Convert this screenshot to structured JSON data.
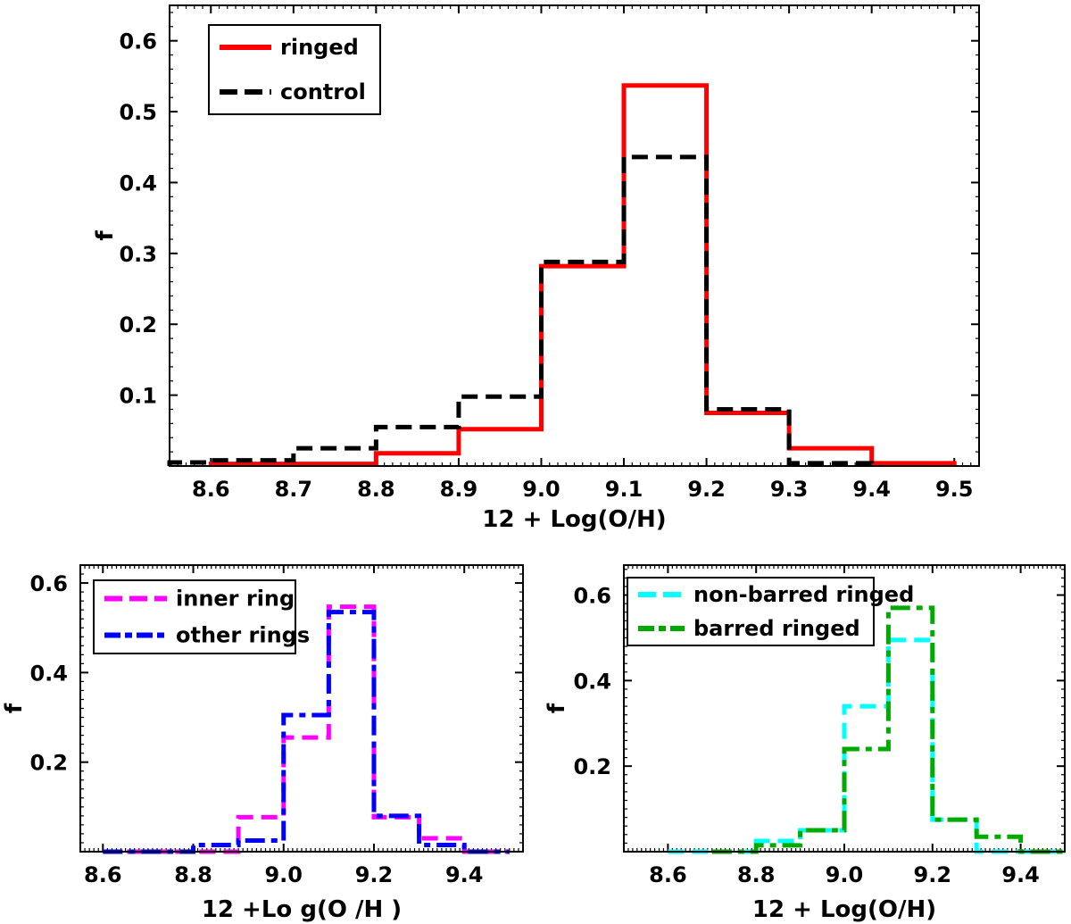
{
  "chart_data": [
    {
      "type": "histogram-step",
      "title": "",
      "xlabel": "12 + Log(O/H)",
      "ylabel": "f",
      "xlim": [
        8.55,
        9.53
      ],
      "ylim": [
        0,
        0.65
      ],
      "xticks": [
        8.6,
        8.7,
        8.8,
        8.9,
        9.0,
        9.1,
        9.2,
        9.3,
        9.4,
        9.5
      ],
      "xtick_labels": [
        "8.6",
        "8.7",
        "8.8",
        "8.9",
        "9.0",
        "9.1",
        "9.2",
        "9.3",
        "9.4",
        "9.5"
      ],
      "yticks": [
        0.1,
        0.2,
        0.3,
        0.4,
        0.5,
        0.6
      ],
      "ytick_labels": [
        "0.1",
        "0.2",
        "0.3",
        "0.4",
        "0.5",
        "0.6"
      ],
      "legend_position": "top-left",
      "series": [
        {
          "name": "ringed",
          "style": "solid",
          "color": "#ff0000",
          "bin_edges": [
            8.6,
            8.7,
            8.8,
            8.9,
            9.0,
            9.1,
            9.2,
            9.3,
            9.4,
            9.5
          ],
          "values": [
            0.003,
            0.003,
            0.018,
            0.052,
            0.282,
            0.537,
            0.075,
            0.025,
            0.004
          ]
        },
        {
          "name": "control",
          "style": "dashed",
          "color": "#000000",
          "bin_edges": [
            8.55,
            8.6,
            8.7,
            8.8,
            8.9,
            9.0,
            9.1,
            9.2,
            9.3,
            9.4
          ],
          "values": [
            0.005,
            0.008,
            0.025,
            0.055,
            0.098,
            0.288,
            0.436,
            0.08,
            0.004
          ]
        }
      ]
    },
    {
      "type": "histogram-step",
      "title": "",
      "xlabel": "12 +Lo g(O /H )",
      "ylabel": "f",
      "xlim": [
        8.55,
        9.53
      ],
      "ylim": [
        0,
        0.64
      ],
      "xticks": [
        8.6,
        8.8,
        9.0,
        9.2,
        9.4
      ],
      "xtick_labels": [
        "8.6",
        "8.8",
        "9.0",
        "9.2",
        "9.4"
      ],
      "yticks": [
        0.2,
        0.4,
        0.6
      ],
      "ytick_labels": [
        "0.2",
        "0.4",
        "0.6"
      ],
      "legend_position": "top-left",
      "series": [
        {
          "name": "inner ring",
          "style": "dashed",
          "color": "#ff00ff",
          "bin_edges": [
            8.6,
            8.7,
            8.8,
            8.9,
            9.0,
            9.1,
            9.2,
            9.3,
            9.4,
            9.5
          ],
          "values": [
            0.0,
            0.0,
            0.0,
            0.077,
            0.255,
            0.547,
            0.077,
            0.03,
            0.0
          ]
        },
        {
          "name": "other rings",
          "style": "dashdot",
          "color": "#0000ff",
          "bin_edges": [
            8.6,
            8.7,
            8.8,
            8.9,
            9.0,
            9.1,
            9.2,
            9.3,
            9.4,
            9.5
          ],
          "values": [
            0.0,
            0.0,
            0.015,
            0.025,
            0.305,
            0.535,
            0.08,
            0.015,
            0.0
          ]
        }
      ]
    },
    {
      "type": "histogram-step",
      "title": "",
      "xlabel": "12 + Log(O/H)",
      "ylabel": "f",
      "xlim": [
        8.5,
        9.5
      ],
      "ylim": [
        0,
        0.67
      ],
      "xticks": [
        8.6,
        8.8,
        9.0,
        9.2,
        9.4
      ],
      "xtick_labels": [
        "8.6",
        "8.8",
        "9.0",
        "9.2",
        "9.4"
      ],
      "yticks": [
        0.2,
        0.4,
        0.6
      ],
      "ytick_labels": [
        "0.2",
        "0.4",
        "0.6"
      ],
      "legend_position": "top-left",
      "series": [
        {
          "name": "non-barred ringed",
          "style": "dashed",
          "color": "#00ffff",
          "bin_edges": [
            8.6,
            8.7,
            8.8,
            8.9,
            9.0,
            9.1,
            9.2,
            9.3,
            9.4,
            9.5
          ],
          "values": [
            0.0,
            0.0,
            0.025,
            0.05,
            0.34,
            0.495,
            0.075,
            0.0,
            0.0
          ]
        },
        {
          "name": "barred ringed",
          "style": "dashdot",
          "color": "#00aa00",
          "bin_edges": [
            8.7,
            8.8,
            8.9,
            9.0,
            9.1,
            9.2,
            9.3,
            9.4,
            9.5
          ],
          "values": [
            0.0,
            0.015,
            0.05,
            0.24,
            0.57,
            0.075,
            0.035,
            0.0
          ]
        }
      ]
    }
  ]
}
